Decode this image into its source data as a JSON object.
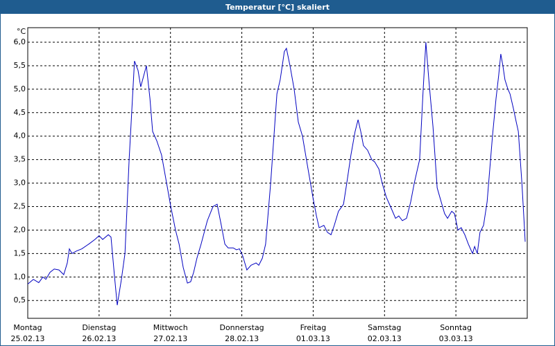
{
  "chart_data": {
    "type": "line",
    "title": "Temperatur [°C] skaliert",
    "y_unit": "°C",
    "x": [
      0,
      1.9,
      3.7,
      5.1,
      6.1,
      7.5,
      8.9,
      10.5,
      12.1,
      13.3,
      14,
      14.9,
      16.3,
      18.2,
      20.5,
      22.6,
      24,
      25.2,
      27.1,
      28,
      29.2,
      30.1,
      31.5,
      32.7,
      34.1,
      35.9,
      37.1,
      38,
      39.9,
      41.1,
      42,
      43.4,
      45,
      46.7,
      48.1,
      49.7,
      50.9,
      52.3,
      53.7,
      54.8,
      55.8,
      56.9,
      58.3,
      60.4,
      62.3,
      63.7,
      65.1,
      66.3,
      67.4,
      69.1,
      70.2,
      71.2,
      72.3,
      73.7,
      75.1,
      76.8,
      77.7,
      78.9,
      80,
      81.7,
      83.8,
      84.9,
      86.3,
      87,
      88.2,
      89.6,
      91,
      92.4,
      94,
      95.9,
      97.1,
      98,
      99.6,
      100.8,
      102,
      103.1,
      104.5,
      106.2,
      107.3,
      108.7,
      110.1,
      111.1,
      112,
      112.9,
      114.3,
      115.7,
      116.7,
      118.1,
      119.2,
      120.6,
      122,
      123.7,
      124.8,
      126,
      127.4,
      128.8,
      130,
      131.8,
      133,
      133.9,
      134.9,
      136.3,
      137.7,
      138.6,
      140.2,
      141.2,
      142.6,
      143.5,
      144.7,
      145.8,
      147,
      148.2,
      149.6,
      150.3,
      151.2,
      152.1,
      153.3,
      154.5,
      155.4,
      156.3,
      157.5,
      158.4,
      159.1,
      159.8,
      160.5,
      161.5,
      162.2,
      163.3,
      164.3,
      165,
      166.2,
      167.1,
      167.3
    ],
    "series": [
      {
        "name": "Temperatur",
        "color": "#0000c0",
        "values": [
          0.85,
          0.95,
          0.88,
          1.0,
          0.95,
          1.1,
          1.17,
          1.15,
          1.05,
          1.3,
          1.6,
          1.5,
          1.55,
          1.6,
          1.7,
          1.8,
          1.88,
          1.8,
          1.9,
          1.85,
          1.0,
          0.4,
          0.95,
          1.5,
          3.5,
          5.6,
          5.4,
          5.05,
          5.5,
          4.8,
          4.1,
          3.9,
          3.6,
          3.0,
          2.5,
          2.0,
          1.7,
          1.2,
          0.87,
          0.9,
          1.1,
          1.4,
          1.7,
          2.2,
          2.5,
          2.55,
          2.1,
          1.7,
          1.62,
          1.62,
          1.58,
          1.6,
          1.45,
          1.15,
          1.25,
          1.3,
          1.25,
          1.4,
          1.7,
          3.0,
          4.9,
          5.2,
          5.8,
          5.87,
          5.5,
          5.0,
          4.3,
          4.0,
          3.4,
          2.7,
          2.3,
          2.05,
          2.1,
          1.95,
          1.9,
          2.1,
          2.4,
          2.55,
          3.0,
          3.6,
          4.1,
          4.35,
          4.1,
          3.8,
          3.7,
          3.5,
          3.45,
          3.3,
          3.0,
          2.7,
          2.5,
          2.25,
          2.3,
          2.2,
          2.25,
          2.6,
          3.0,
          3.5,
          5.0,
          6.0,
          5.2,
          4.2,
          2.9,
          2.7,
          2.35,
          2.25,
          2.4,
          2.35,
          2.0,
          2.05,
          1.9,
          1.7,
          1.5,
          1.65,
          1.5,
          1.95,
          2.1,
          2.6,
          3.3,
          4.0,
          4.8,
          5.3,
          5.75,
          5.5,
          5.2,
          5.0,
          4.9,
          4.6,
          4.3,
          4.1,
          3.0,
          2.0,
          1.75
        ]
      }
    ],
    "xlim": [
      0,
      168
    ],
    "xticks": [
      {
        "value": 0,
        "label": "Montag",
        "sublabel": "25.02.13"
      },
      {
        "value": 24,
        "label": "Dienstag",
        "sublabel": "26.02.13"
      },
      {
        "value": 48,
        "label": "Mittwoch",
        "sublabel": "27.02.13"
      },
      {
        "value": 72,
        "label": "Donnerstag",
        "sublabel": "28.02.13"
      },
      {
        "value": 96,
        "label": "Freitag",
        "sublabel": "01.03.13"
      },
      {
        "value": 120,
        "label": "Samstag",
        "sublabel": "02.03.13"
      },
      {
        "value": 144,
        "label": "Sonntag",
        "sublabel": "03.03.13"
      }
    ],
    "ylim": [
      0.12,
      6.31
    ],
    "yticks": [
      {
        "value": 0.5,
        "label": "0,5"
      },
      {
        "value": 1,
        "label": "1,0"
      },
      {
        "value": 1.5,
        "label": "1,5"
      },
      {
        "value": 2,
        "label": "2,0"
      },
      {
        "value": 2.5,
        "label": "2,5"
      },
      {
        "value": 3,
        "label": "3,0"
      },
      {
        "value": 3.5,
        "label": "3,5"
      },
      {
        "value": 4,
        "label": "4,0"
      },
      {
        "value": 4.5,
        "label": "4,5"
      },
      {
        "value": 5,
        "label": "5,0"
      },
      {
        "value": 5.5,
        "label": "5,5"
      },
      {
        "value": 6,
        "label": "6,0"
      }
    ],
    "grid": true
  }
}
